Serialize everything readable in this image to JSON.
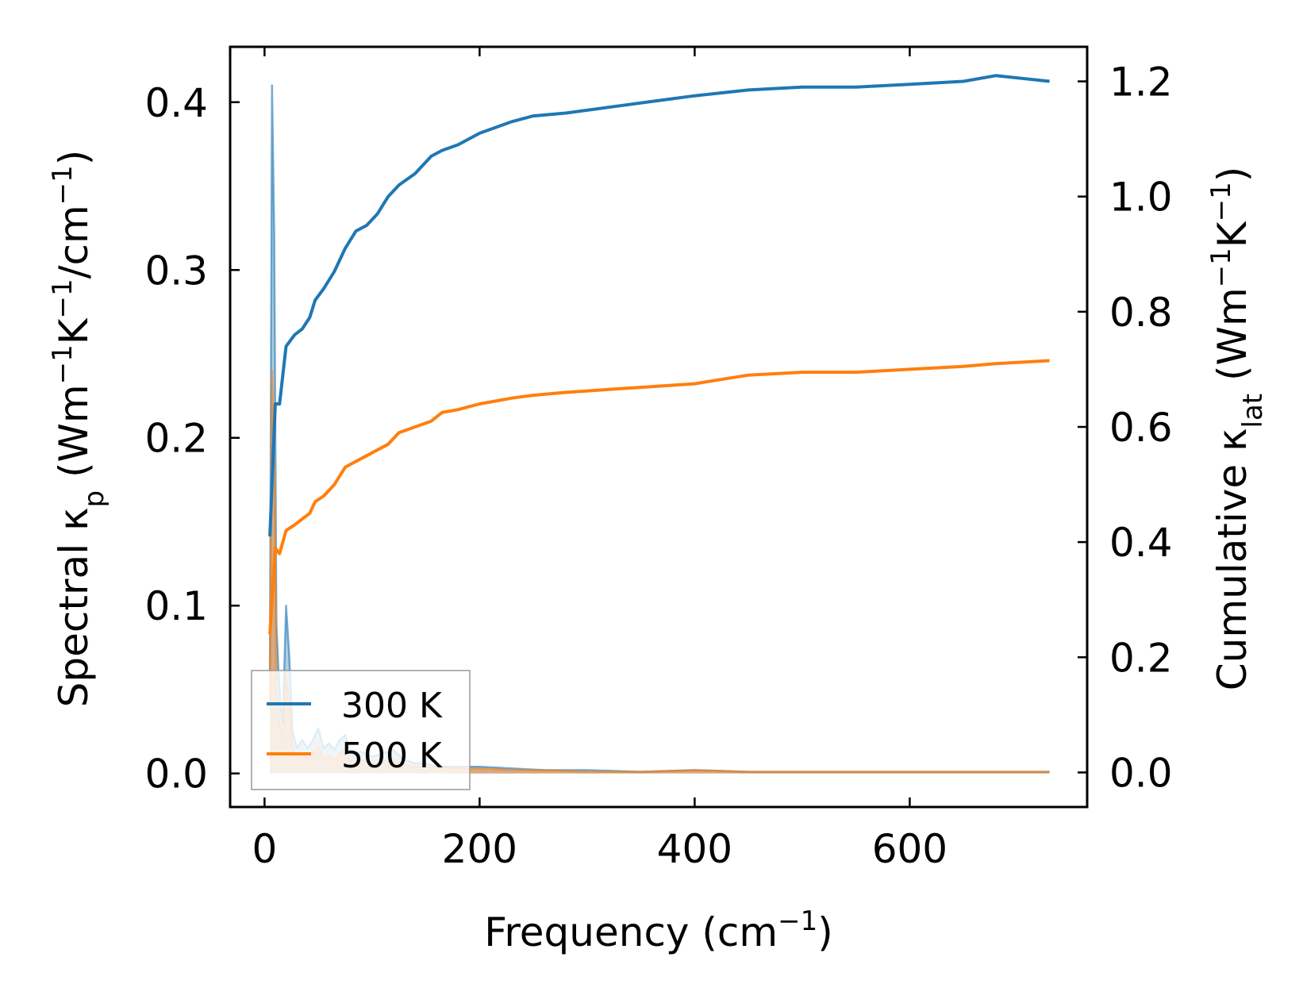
{
  "chart_data": {
    "type": "line",
    "title": "",
    "xlabel": {
      "text": "Frequency (cm",
      "sup": "−1",
      "suffix": ")"
    },
    "ylabel_left": {
      "parts": [
        {
          "t": "Spectral κ",
          "s": "n"
        },
        {
          "t": "p",
          "s": "sub"
        },
        {
          "t": " (Wm",
          "s": "n"
        },
        {
          "t": "−1",
          "s": "sup"
        },
        {
          "t": "K",
          "s": "n"
        },
        {
          "t": "−1",
          "s": "sup"
        },
        {
          "t": "/cm",
          "s": "n"
        },
        {
          "t": "−1",
          "s": "sup"
        },
        {
          "t": ")",
          "s": "n"
        }
      ]
    },
    "ylabel_right": {
      "parts": [
        {
          "t": "Cumulative κ",
          "s": "n"
        },
        {
          "t": "lat",
          "s": "sub"
        },
        {
          "t": " (Wm",
          "s": "n"
        },
        {
          "t": "−1",
          "s": "sup"
        },
        {
          "t": "K",
          "s": "n"
        },
        {
          "t": "−1",
          "s": "sup"
        },
        {
          "t": ")",
          "s": "n"
        }
      ]
    },
    "xlim": [
      -32,
      765
    ],
    "ylim_left": [
      -0.02,
      0.433
    ],
    "ylim_right": [
      -0.06,
      1.26
    ],
    "xticks": [
      0,
      200,
      400,
      600
    ],
    "xtick_labels": [
      "0",
      "200",
      "400",
      "600"
    ],
    "yticks_left": [
      0.0,
      0.1,
      0.2,
      0.3,
      0.4
    ],
    "yticks_left_labels": [
      "0.0",
      "0.1",
      "0.2",
      "0.3",
      "0.4"
    ],
    "yticks_right": [
      0.0,
      0.2,
      0.4,
      0.6,
      0.8,
      1.0,
      1.2
    ],
    "yticks_right_labels": [
      "0.0",
      "0.2",
      "0.4",
      "0.6",
      "0.8",
      "1.0",
      "1.2"
    ],
    "legend": {
      "location": "lower-left",
      "entries": [
        {
          "label": "300 K",
          "color": "#1f77b4"
        },
        {
          "label": "500 K",
          "color": "#ff7f0e"
        }
      ]
    },
    "series": [
      {
        "name": "300 K cumulative",
        "axis": "right",
        "kind": "line",
        "color": "#1f77b4",
        "x": [
          5,
          10,
          14,
          20,
          28,
          35,
          42,
          47,
          55,
          65,
          75,
          85,
          95,
          105,
          115,
          125,
          140,
          155,
          165,
          180,
          200,
          230,
          250,
          280,
          320,
          360,
          400,
          450,
          500,
          550,
          600,
          650,
          680,
          730
        ],
        "y": [
          0.41,
          0.64,
          0.64,
          0.74,
          0.76,
          0.77,
          0.79,
          0.82,
          0.84,
          0.87,
          0.91,
          0.94,
          0.95,
          0.97,
          1.0,
          1.02,
          1.04,
          1.07,
          1.08,
          1.09,
          1.11,
          1.13,
          1.14,
          1.145,
          1.155,
          1.165,
          1.175,
          1.185,
          1.19,
          1.19,
          1.195,
          1.2,
          1.21,
          1.2
        ]
      },
      {
        "name": "500 K cumulative",
        "axis": "right",
        "kind": "line",
        "color": "#ff7f0e",
        "x": [
          5,
          10,
          14,
          20,
          28,
          35,
          42,
          47,
          55,
          65,
          75,
          85,
          95,
          105,
          115,
          125,
          140,
          155,
          165,
          180,
          200,
          230,
          250,
          280,
          320,
          360,
          400,
          450,
          500,
          550,
          600,
          650,
          680,
          730
        ],
        "y": [
          0.24,
          0.39,
          0.38,
          0.42,
          0.43,
          0.44,
          0.45,
          0.47,
          0.48,
          0.5,
          0.53,
          0.54,
          0.55,
          0.56,
          0.57,
          0.59,
          0.6,
          0.61,
          0.625,
          0.63,
          0.64,
          0.65,
          0.655,
          0.66,
          0.665,
          0.67,
          0.675,
          0.69,
          0.695,
          0.695,
          0.7,
          0.705,
          0.71,
          0.715
        ]
      },
      {
        "name": "300 K spectral",
        "axis": "left",
        "kind": "area",
        "color": "#1f77b4",
        "x": [
          5,
          7,
          9,
          11,
          13,
          15,
          17,
          20,
          23,
          26,
          30,
          35,
          40,
          45,
          50,
          55,
          60,
          65,
          70,
          75,
          80,
          90,
          100,
          110,
          120,
          130,
          140,
          150,
          160,
          180,
          200,
          230,
          260,
          300,
          350,
          400,
          450,
          500,
          550,
          600,
          650,
          700,
          730
        ],
        "y": [
          0.06,
          0.41,
          0.32,
          0.09,
          0.06,
          0.04,
          0.03,
          0.1,
          0.07,
          0.025,
          0.015,
          0.02,
          0.015,
          0.02,
          0.027,
          0.015,
          0.018,
          0.014,
          0.02,
          0.023,
          0.012,
          0.013,
          0.01,
          0.012,
          0.014,
          0.008,
          0.006,
          0.006,
          0.004,
          0.004,
          0.004,
          0.003,
          0.002,
          0.002,
          0.001,
          0.002,
          0.001,
          0.001,
          0.001,
          0.001,
          0.001,
          0.001,
          0.001
        ]
      },
      {
        "name": "500 K spectral",
        "axis": "left",
        "kind": "area",
        "color": "#ff7f0e",
        "x": [
          5,
          7,
          9,
          11,
          13,
          15,
          17,
          20,
          23,
          26,
          30,
          35,
          40,
          45,
          50,
          55,
          60,
          65,
          70,
          75,
          80,
          90,
          100,
          110,
          120,
          130,
          140,
          150,
          160,
          180,
          200,
          230,
          260,
          300,
          350,
          400,
          450,
          500,
          550,
          600,
          650,
          700,
          730
        ],
        "y": [
          0.04,
          0.24,
          0.19,
          0.05,
          0.035,
          0.025,
          0.02,
          0.06,
          0.04,
          0.015,
          0.009,
          0.012,
          0.009,
          0.012,
          0.016,
          0.009,
          0.011,
          0.008,
          0.012,
          0.014,
          0.007,
          0.008,
          0.006,
          0.007,
          0.008,
          0.005,
          0.004,
          0.004,
          0.003,
          0.003,
          0.003,
          0.002,
          0.002,
          0.001,
          0.001,
          0.002,
          0.001,
          0.001,
          0.001,
          0.001,
          0.001,
          0.001,
          0.001
        ]
      }
    ]
  }
}
